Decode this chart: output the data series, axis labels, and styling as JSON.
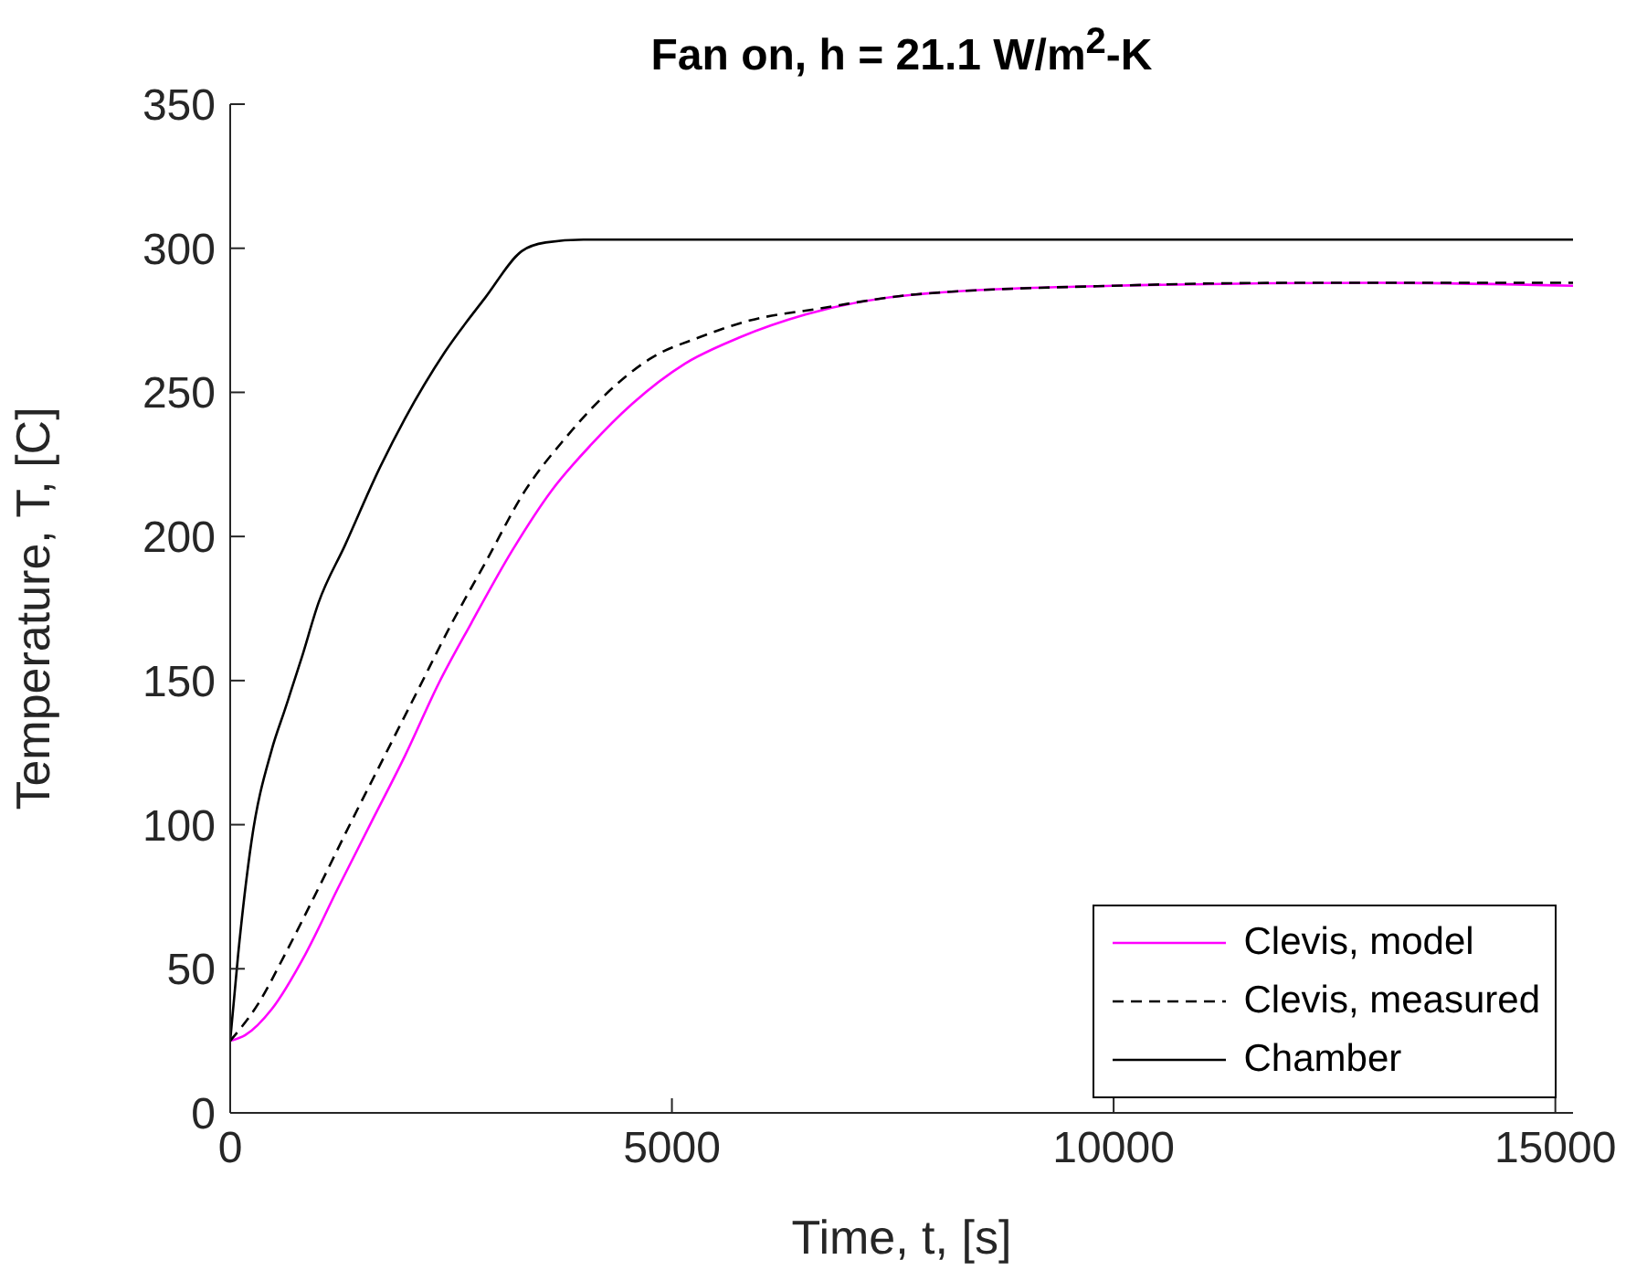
{
  "chart_data": {
    "type": "line",
    "title": "Fan on, h = 21.1 W/m$^{2}$-K",
    "xlabel": "Time, t, [s]",
    "ylabel": "Temperature, T, [C]",
    "xlim": [
      0,
      15200
    ],
    "ylim": [
      0,
      350
    ],
    "xticks": [
      0,
      5000,
      10000,
      15000
    ],
    "yticks": [
      0,
      50,
      100,
      150,
      200,
      250,
      300,
      350
    ],
    "grid": false,
    "legend": "bottom right",
    "marker": "none",
    "series": [
      {
        "name": "Clevis, model",
        "color": "#ff00ff",
        "line_style": "solid",
        "x": [
          0,
          170,
          470,
          850,
          1220,
          1600,
          1980,
          2360,
          2730,
          3190,
          3640,
          4090,
          4550,
          5150,
          5760,
          6510,
          7760,
          10000,
          13000,
          15200
        ],
        "values": [
          25,
          27,
          36,
          55,
          78,
          101,
          124,
          149,
          170,
          195,
          216,
          232,
          246,
          260,
          269,
          277,
          284,
          287,
          288,
          287
        ]
      },
      {
        "name": "Clevis, measured",
        "color": "#000000",
        "line_style": "dashed",
        "x": [
          0,
          320,
          620,
          1000,
          1370,
          1750,
          2130,
          2510,
          2890,
          3340,
          3790,
          4240,
          4770,
          5300,
          5890,
          6650,
          7760,
          10000,
          12000,
          15200
        ],
        "values": [
          25,
          38,
          55,
          78,
          101,
          124,
          147,
          170,
          191,
          216,
          234,
          249,
          262,
          269,
          275,
          279,
          284,
          287,
          288,
          288
        ]
      },
      {
        "name": "Chamber",
        "color": "#000000",
        "line_style": "solid",
        "x": [
          0,
          90,
          240,
          470,
          620,
          810,
          1000,
          1300,
          1680,
          1980,
          2430,
          2890,
          3300,
          3570,
          4000,
          6000,
          9000,
          12000,
          15200
        ],
        "values": [
          25,
          55,
          94,
          126,
          140,
          158,
          177,
          197,
          223,
          241,
          264,
          283,
          299,
          302,
          303,
          303,
          303,
          303,
          303
        ]
      }
    ]
  }
}
